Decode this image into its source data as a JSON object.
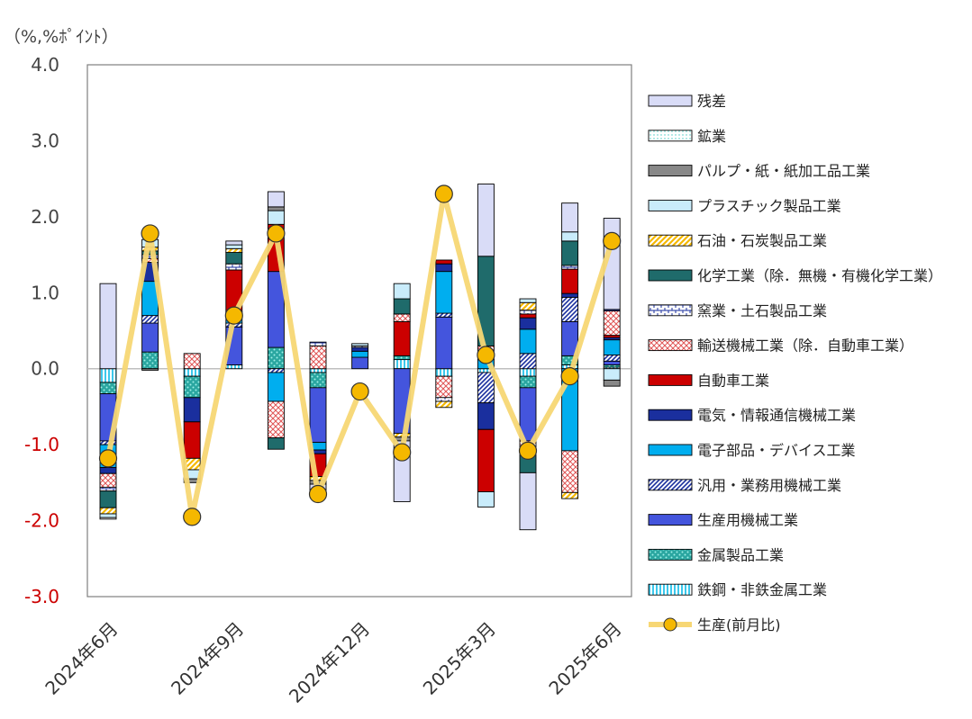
{
  "chart_data": {
    "type": "stacked-bar+line",
    "unit_label": "（%,%ﾎﾟｲﾝﾄ）",
    "ylim": [
      -3.0,
      4.0
    ],
    "yticks": [
      "4.0",
      "3.0",
      "2.0",
      "1.0",
      "0.0",
      "-1.0",
      "-2.0",
      "-3.0"
    ],
    "ytick_values": [
      4,
      3,
      2,
      1,
      0,
      -1,
      -2,
      -3
    ],
    "negative_tick_color": "#cc0000",
    "positive_tick_color": "#444444",
    "xtick_labels": [
      {
        "label": "2024年6月",
        "index": 0
      },
      {
        "label": "2024年9月",
        "index": 3
      },
      {
        "label": "2024年12月",
        "index": 6
      },
      {
        "label": "2025年3月",
        "index": 9
      },
      {
        "label": "2025年6月",
        "index": 12
      }
    ],
    "months": [
      "2024-06",
      "2024-07",
      "2024-08",
      "2024-09",
      "2024-10",
      "2024-11",
      "2024-12",
      "2025-01",
      "2025-02",
      "2025-03",
      "2025-04",
      "2025-05",
      "2025-06"
    ],
    "series": [
      {
        "name": "鉄鋼・非鉄金属工業",
        "fill": "#5fd3ee",
        "pattern": "vlines",
        "values": [
          -0.18,
          0.0,
          -0.1,
          0.05,
          0.0,
          -0.05,
          0.0,
          0.12,
          -0.1,
          -0.05,
          -0.1,
          0.05,
          0.02
        ]
      },
      {
        "name": "金属製品工業",
        "fill": "#1aa39a",
        "pattern": "dots",
        "values": [
          -0.15,
          0.22,
          -0.28,
          0.0,
          0.28,
          -0.2,
          0.0,
          0.05,
          0.0,
          0.0,
          -0.15,
          0.12,
          0.03
        ]
      },
      {
        "name": "生産用機械工業",
        "fill": "#4455dd",
        "pattern": "solid",
        "values": [
          -0.62,
          0.38,
          0.0,
          0.5,
          1.0,
          -0.72,
          0.15,
          -0.85,
          0.68,
          0.0,
          -0.7,
          0.45,
          0.05
        ]
      },
      {
        "name": "汎用・業務用機械工業",
        "fill": "#ffffff",
        "pattern": "diag",
        "values": [
          -0.05,
          0.1,
          0.0,
          0.05,
          -0.05,
          0.0,
          0.0,
          0.0,
          0.05,
          -0.4,
          0.2,
          0.32,
          0.08
        ]
      },
      {
        "name": "電子部品・デバイス工業",
        "fill": "#00aeef",
        "pattern": "solid",
        "values": [
          -0.3,
          0.45,
          0.0,
          0.1,
          -0.38,
          -0.1,
          0.08,
          0.0,
          0.55,
          0.12,
          0.32,
          -1.08,
          0.2
        ]
      },
      {
        "name": "電気・情報通信機械工業",
        "fill": "#1a2f9e",
        "pattern": "solid",
        "values": [
          -0.08,
          0.25,
          -0.32,
          0.05,
          0.0,
          -0.05,
          0.05,
          0.0,
          0.1,
          -0.35,
          0.15,
          0.05,
          0.03
        ]
      },
      {
        "name": "自動車工業",
        "fill": "#cc0000",
        "pattern": "solid",
        "values": [
          0.0,
          0.0,
          -0.48,
          0.55,
          0.62,
          -0.3,
          0.0,
          0.45,
          0.05,
          -0.82,
          0.05,
          0.32,
          0.03
        ]
      },
      {
        "name": "輸送機械工業（除．自動車工業）",
        "fill": "#ffffff",
        "pattern": "checker",
        "values": [
          -0.18,
          0.05,
          0.2,
          0.0,
          -0.48,
          0.3,
          0.0,
          0.1,
          -0.28,
          0.18,
          -0.1,
          -0.55,
          0.32
        ]
      },
      {
        "name": "窯業・土石製品工業",
        "fill": "#ffffff",
        "pattern": "brick",
        "values": [
          -0.05,
          0.05,
          0.0,
          0.08,
          0.0,
          0.05,
          0.02,
          0.0,
          -0.05,
          0.0,
          0.05,
          0.05,
          0.02
        ]
      },
      {
        "name": "化学工業（除．無機・有機化学工業）",
        "fill": "#1f6b6b",
        "pattern": "solid",
        "values": [
          -0.22,
          0.05,
          0.0,
          0.15,
          -0.15,
          0.0,
          0.0,
          0.2,
          0.0,
          1.18,
          -0.32,
          0.32,
          0.0
        ]
      },
      {
        "name": "石油・石炭製品工業",
        "fill": "#ffffff",
        "pattern": "stripe-gold",
        "values": [
          -0.08,
          0.05,
          -0.15,
          0.05,
          0.0,
          -0.05,
          0.0,
          -0.05,
          -0.08,
          0.0,
          0.1,
          -0.08,
          0.0
        ]
      },
      {
        "name": "プラスチック製品工業",
        "fill": "#c9ecfb",
        "pattern": "solid",
        "values": [
          -0.05,
          0.1,
          -0.12,
          0.05,
          0.18,
          0.0,
          0.03,
          0.2,
          0.0,
          -0.2,
          0.05,
          0.12,
          -0.15
        ]
      },
      {
        "name": "パルプ・紙・紙加工品工業",
        "fill": "#888888",
        "pattern": "solid",
        "values": [
          0.0,
          -0.02,
          -0.05,
          0.0,
          0.05,
          -0.05,
          0.0,
          -0.05,
          0.0,
          0.0,
          0.0,
          0.0,
          -0.08
        ]
      },
      {
        "name": "鉱業",
        "fill": "#ffffff",
        "pattern": "fine-dots",
        "values": [
          -0.02,
          0.0,
          0.0,
          0.0,
          0.0,
          0.0,
          0.0,
          0.0,
          0.0,
          0.0,
          0.0,
          0.0,
          0.0
        ]
      },
      {
        "name": "残差",
        "fill": "#d9dcf7",
        "pattern": "solid",
        "values": [
          1.12,
          0.0,
          0.0,
          0.05,
          0.2,
          -0.1,
          0.0,
          -0.8,
          0.0,
          0.95,
          -0.75,
          0.38,
          1.2
        ]
      }
    ],
    "line": {
      "name": "生産(前月比)",
      "color": "#f7d774",
      "marker": "#f5b800",
      "values": [
        -1.18,
        1.78,
        -1.95,
        0.7,
        1.78,
        -1.65,
        -0.3,
        -1.1,
        2.3,
        0.18,
        -1.08,
        -0.1,
        1.68
      ]
    },
    "legend_order": [
      "残差",
      "鉱業",
      "パルプ・紙・紙加工品工業",
      "プラスチック製品工業",
      "石油・石炭製品工業",
      "化学工業（除．無機・有機化学工業）",
      "窯業・土石製品工業",
      "輸送機械工業（除．自動車工業）",
      "自動車工業",
      "電気・情報通信機械工業",
      "電子部品・デバイス工業",
      "汎用・業務用機械工業",
      "生産用機械工業",
      "金属製品工業",
      "鉄鋼・非鉄金属工業",
      "生産(前月比)"
    ],
    "legend_placement": "right",
    "grid": false
  }
}
